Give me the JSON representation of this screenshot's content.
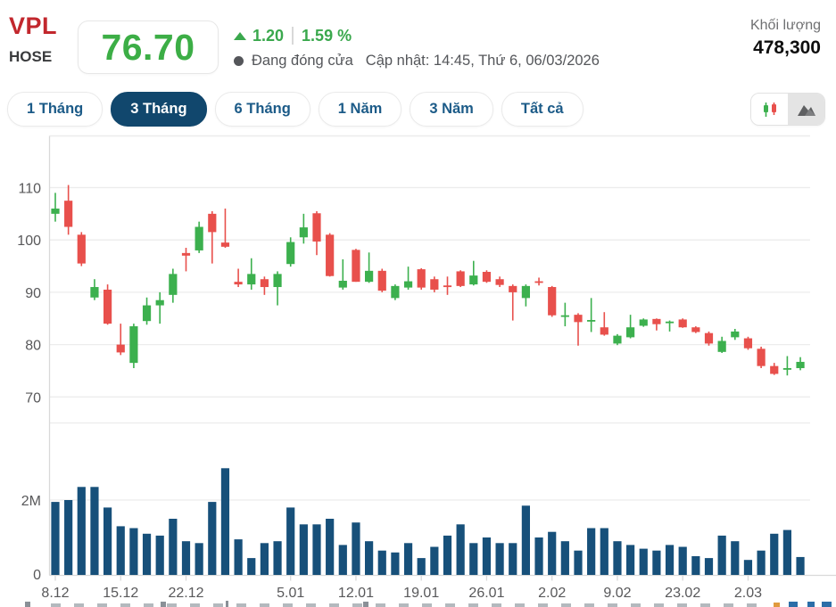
{
  "header": {
    "ticker": "VPL",
    "exchange": "HOSE",
    "price": "76.70",
    "change": "1.20",
    "change_percent": "1.59 %",
    "status": "Đang đóng cửa",
    "updated": "Cập nhật: 14:45, Thứ 6, 06/03/2026",
    "volume_label": "Khối lượng",
    "volume_value": "478,300",
    "price_color": "#3cae46",
    "change_color": "#3aa84d",
    "ticker_color": "#c2272d"
  },
  "tabs": {
    "items": [
      {
        "label": "1 Tháng",
        "selected": false
      },
      {
        "label": "3 Tháng",
        "selected": true
      },
      {
        "label": "6 Tháng",
        "selected": false
      },
      {
        "label": "1 Năm",
        "selected": false
      },
      {
        "label": "3 Năm",
        "selected": false
      },
      {
        "label": "Tất cả",
        "selected": false
      }
    ],
    "selected_bg": "#11476d",
    "unselected_text": "#1c5b88"
  },
  "chart_toggle": {
    "candle_button_bg": "#ffffff",
    "area_button_bg": "#e4e4e4"
  },
  "chart_data": {
    "type": "candlestick",
    "symbol": "VPL",
    "period": "3 Tháng",
    "grid": true,
    "price_axis": {
      "ticks": [
        110,
        100,
        90,
        80,
        70
      ]
    },
    "volume_axis": {
      "tick_labels": [
        "2M",
        "0"
      ],
      "unit": "millions"
    },
    "x_labels": [
      {
        "text": "8.12",
        "i": 0
      },
      {
        "text": "15.12",
        "i": 5
      },
      {
        "text": "22.12",
        "i": 10
      },
      {
        "text": "5.01",
        "i": 18
      },
      {
        "text": "12.01",
        "i": 23
      },
      {
        "text": "19.01",
        "i": 28
      },
      {
        "text": "26.01",
        "i": 33
      },
      {
        "text": "2.02",
        "i": 38
      },
      {
        "text": "9.02",
        "i": 43
      },
      {
        "text": "23.02",
        "i": 48
      },
      {
        "text": "2.03",
        "i": 53
      }
    ],
    "colors": {
      "up": "#3cb04e",
      "down": "#e8504c",
      "volume": "#17507a",
      "grid": "#ececec",
      "axis": "#d9d9d9",
      "label": "#58585a"
    },
    "candle_format": "ohlcv (v in millions of shares)",
    "candles": [
      [
        105,
        109,
        103.5,
        106,
        1.95
      ],
      [
        107.5,
        110.5,
        101,
        102.5,
        2.0
      ],
      [
        101,
        101.5,
        95,
        95.5,
        2.35
      ],
      [
        89,
        92.5,
        88.5,
        91,
        2.35
      ],
      [
        90.5,
        91.5,
        83.8,
        84,
        1.8
      ],
      [
        80,
        84,
        78,
        78.5,
        1.3
      ],
      [
        76.5,
        84,
        75.5,
        83.5,
        1.25
      ],
      [
        84.5,
        89,
        83.8,
        87.5,
        1.1
      ],
      [
        87.5,
        90,
        84,
        88.5,
        1.05
      ],
      [
        89.5,
        94.5,
        88,
        93.5,
        1.5
      ],
      [
        97.5,
        98.5,
        94,
        97,
        0.9
      ],
      [
        98,
        103.5,
        97.5,
        102.5,
        0.85
      ],
      [
        105,
        105.5,
        95.5,
        101.5,
        1.95
      ],
      [
        99.5,
        106,
        98.5,
        98.7,
        2.85
      ],
      [
        92,
        94.5,
        91,
        91.5,
        0.95
      ],
      [
        91.5,
        96.5,
        90.5,
        93.5,
        0.45
      ],
      [
        92.5,
        93,
        89.5,
        91,
        0.85
      ],
      [
        91,
        94,
        87.5,
        93.5,
        0.9
      ],
      [
        95.4,
        100.5,
        94.9,
        99.6,
        1.8
      ],
      [
        100.5,
        105,
        99.3,
        102.4,
        1.35
      ],
      [
        105.1,
        105.5,
        97.1,
        99.7,
        1.35
      ],
      [
        101,
        101.3,
        93,
        93.1,
        1.5
      ],
      [
        90.9,
        96.3,
        90.5,
        92.2,
        0.8
      ],
      [
        98.1,
        98.3,
        92,
        92,
        1.4
      ],
      [
        92,
        97.6,
        91.8,
        94.1,
        0.9
      ],
      [
        94.1,
        94.5,
        90,
        90.3,
        0.65
      ],
      [
        88.9,
        91.5,
        88.5,
        91.2,
        0.6
      ],
      [
        90.9,
        94.9,
        90.5,
        92.1,
        0.85
      ],
      [
        94.4,
        94.6,
        90.5,
        90.9,
        0.45
      ],
      [
        92.5,
        93,
        90,
        90.5,
        0.75
      ],
      [
        91.3,
        93,
        89.5,
        91,
        1.05
      ],
      [
        94,
        94.2,
        91,
        91.2,
        1.35
      ],
      [
        91.5,
        96,
        91.3,
        93.2,
        0.85
      ],
      [
        93.9,
        94.2,
        91.8,
        92,
        1.0
      ],
      [
        92.5,
        93,
        91,
        91.4,
        0.85
      ],
      [
        91.2,
        91.5,
        84.6,
        90,
        0.85
      ],
      [
        88.9,
        91.5,
        87.3,
        91.2,
        1.85
      ],
      [
        92.1,
        92.8,
        91.3,
        91.8,
        1.0
      ],
      [
        91,
        91.2,
        85.3,
        85.6,
        1.15
      ],
      [
        85.4,
        88,
        83.5,
        85.6,
        0.9
      ],
      [
        85.7,
        86,
        79.8,
        84.3,
        0.65
      ],
      [
        84.5,
        88.9,
        82.4,
        84.7,
        1.25
      ],
      [
        83.3,
        86.2,
        81.7,
        81.9,
        1.25
      ],
      [
        80.2,
        82,
        79.9,
        81.7,
        0.9
      ],
      [
        81.4,
        85.7,
        81.2,
        83.3,
        0.8
      ],
      [
        83.6,
        85,
        83.4,
        84.8,
        0.7
      ],
      [
        84.9,
        85,
        82.7,
        83.9,
        0.65
      ],
      [
        84.2,
        84.6,
        82.5,
        84.4,
        0.8
      ],
      [
        84.8,
        85,
        83.2,
        83.3,
        0.75
      ],
      [
        83.3,
        83.5,
        82.2,
        82.4,
        0.5
      ],
      [
        82.2,
        82.5,
        79.8,
        80.2,
        0.45
      ],
      [
        78.6,
        81.5,
        78.4,
        80.7,
        1.05
      ],
      [
        81.4,
        83,
        80.9,
        82.5,
        0.9
      ],
      [
        81.2,
        81.5,
        79,
        79.3,
        0.4
      ],
      [
        79.2,
        79.6,
        75.5,
        75.9,
        0.65
      ],
      [
        75.9,
        76.5,
        74.2,
        74.4,
        1.1
      ],
      [
        75.5,
        77.8,
        74.1,
        75.5,
        1.2
      ],
      [
        75.5,
        77.6,
        75.1,
        76.7,
        0.478
      ]
    ]
  }
}
